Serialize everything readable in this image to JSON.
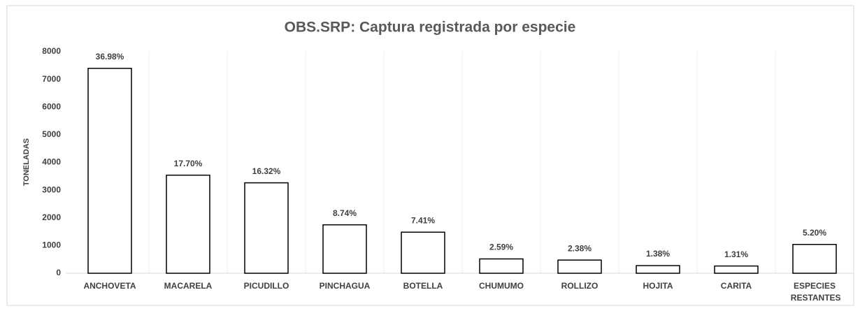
{
  "chart_data": {
    "type": "bar",
    "title": "OBS.SRP: Captura registrada por especie",
    "y_label": "TONELADAS",
    "categories": [
      "ANCHOVETA",
      "MACARELA",
      "PICUDILLO",
      "PINCHAGUA",
      "BOTELLA",
      "CHUMUMO",
      "ROLLIZO",
      "HOJITA",
      "CARITA",
      "ESPECIES RESTANTES"
    ],
    "values": [
      7400,
      3542,
      3266,
      1749,
      1483,
      518,
      476,
      276,
      262,
      1041
    ],
    "data_labels": [
      "36.98%",
      "17.70%",
      "16.32%",
      "8.74%",
      "7.41%",
      "2.59%",
      "2.38%",
      "1.38%",
      "1.31%",
      "5.20%"
    ],
    "color": "#ffffff",
    "edge_color": "#000000",
    "ylim": [
      0,
      8000
    ],
    "yticks": [
      0,
      1000,
      2000,
      3000,
      4000,
      5000,
      6000,
      7000,
      8000
    ],
    "grid": true
  }
}
